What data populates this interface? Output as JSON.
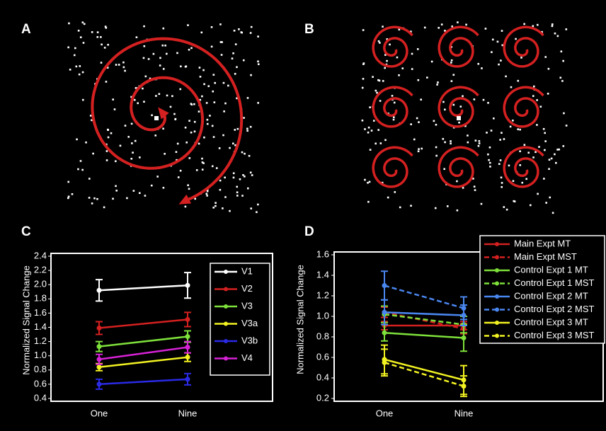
{
  "panel_labels": [
    "A",
    "B",
    "C",
    "D"
  ],
  "chart_data": [
    {
      "type": "line",
      "ylabel": "Normalized Signal Change",
      "categories": [
        "One",
        "Nine"
      ],
      "ylim": [
        0.4,
        2.4
      ],
      "yticks": [
        0.4,
        0.6,
        0.8,
        {
          "value": 1,
          "label": "1.0"
        },
        1.2,
        1.4,
        1.6,
        1.8,
        {
          "value": 2,
          "label": "2.0"
        },
        2.2,
        2.4
      ],
      "series": [
        {
          "name": "V1",
          "color": "#ffffff",
          "values": [
            1.92,
            1.99
          ],
          "errors": [
            0.15,
            0.18
          ]
        },
        {
          "name": "V2",
          "color": "#d42020",
          "values": [
            1.39,
            1.51
          ],
          "errors": [
            0.09,
            0.1
          ]
        },
        {
          "name": "V3",
          "color": "#7ee03a",
          "values": [
            1.13,
            1.27
          ],
          "errors": [
            0.07,
            0.08
          ]
        },
        {
          "name": "V3a",
          "color": "#f2f222",
          "values": [
            0.84,
            0.98
          ],
          "errors": [
            0.05,
            0.06
          ]
        },
        {
          "name": "V3b",
          "color": "#2a2ae6",
          "values": [
            0.6,
            0.67
          ],
          "errors": [
            0.07,
            0.08
          ]
        },
        {
          "name": "V4",
          "color": "#d622d6",
          "values": [
            0.95,
            1.12
          ],
          "errors": [
            0.07,
            0.08
          ]
        }
      ]
    },
    {
      "type": "line",
      "ylabel": "Normalized Signal Change",
      "categories": [
        "One",
        "Nine"
      ],
      "ylim": [
        0.2,
        1.6
      ],
      "yticks": [
        0.2,
        0.4,
        0.6,
        0.8,
        {
          "value": 1,
          "label": "1.0"
        },
        1.2,
        1.4,
        1.6
      ],
      "series": [
        {
          "name": "Main Expt MT",
          "color": "#d42020",
          "dashed": false,
          "values": [
            0.91,
            0.91
          ],
          "errors": [
            0.04,
            0.04
          ]
        },
        {
          "name": "Main Expt MST",
          "color": "#d42020",
          "dashed": true,
          "values": [
            1.04,
            0.88
          ],
          "errors": [
            0.05,
            0.05
          ]
        },
        {
          "name": "Control Expt 1 MT",
          "color": "#7ee03a",
          "dashed": false,
          "values": [
            0.84,
            0.79
          ],
          "errors": [
            0.08,
            0.13
          ]
        },
        {
          "name": "Control Expt 1 MST",
          "color": "#7ee03a",
          "dashed": true,
          "values": [
            1.02,
            0.92
          ],
          "errors": [
            0.08,
            0.08
          ]
        },
        {
          "name": "Control Expt 2 MT",
          "color": "#4a86f0",
          "dashed": false,
          "values": [
            1.04,
            1.01
          ],
          "errors": [
            0.12,
            0.1
          ]
        },
        {
          "name": "Control Expt 2 MST",
          "color": "#4a86f0",
          "dashed": true,
          "values": [
            1.3,
            1.08
          ],
          "errors": [
            0.14,
            0.11
          ]
        },
        {
          "name": "Control Expt 3 MT",
          "color": "#f2f222",
          "dashed": false,
          "values": [
            0.58,
            0.38
          ],
          "errors": [
            0.14,
            0.14
          ]
        },
        {
          "name": "Control Expt 3 MST",
          "color": "#f2f222",
          "dashed": true,
          "values": [
            0.55,
            0.32
          ],
          "errors": [
            0.13,
            0.1
          ]
        }
      ]
    }
  ]
}
